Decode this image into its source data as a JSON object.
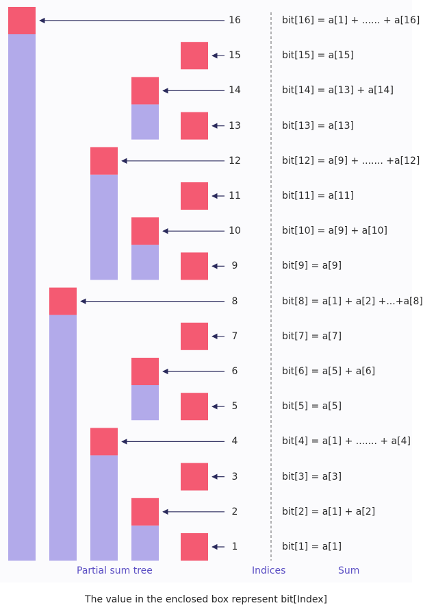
{
  "caption": "The value in the enclosed box represent bit[Index]",
  "footer": {
    "tree_label": "Partial sum tree",
    "indices_label": "Indices",
    "sum_label": "Sum"
  },
  "colors": {
    "enclosed_box": "#f45a72",
    "span_bar": "#b2aaea",
    "arrow": "#2a2a5c",
    "divider": "#666666",
    "footer_text": "#5b4fc4"
  },
  "nodes": [
    {
      "index": 1,
      "label": "1",
      "sum": "bit[1] = a[1]"
    },
    {
      "index": 2,
      "label": "2",
      "sum": "bit[2] = a[1] + a[2]"
    },
    {
      "index": 3,
      "label": "3",
      "sum": "bit[3] = a[3]"
    },
    {
      "index": 4,
      "label": "4",
      "sum": "bit[4] = a[1] + ....... + a[4]"
    },
    {
      "index": 5,
      "label": "5",
      "sum": "bit[5] = a[5]"
    },
    {
      "index": 6,
      "label": "6",
      "sum": "bit[6] = a[5] + a[6]"
    },
    {
      "index": 7,
      "label": "7",
      "sum": "bit[7] = a[7]"
    },
    {
      "index": 8,
      "label": "8",
      "sum": "bit[8] = a[1] + a[2] +...+a[8]"
    },
    {
      "index": 9,
      "label": "9",
      "sum": "bit[9] = a[9]"
    },
    {
      "index": 10,
      "label": "10",
      "sum": "bit[10] = a[9] + a[10]"
    },
    {
      "index": 11,
      "label": "11",
      "sum": "bit[11] = a[11]"
    },
    {
      "index": 12,
      "label": "12",
      "sum": "bit[12] = a[9] + ....... +a[12]"
    },
    {
      "index": 13,
      "label": "13",
      "sum": "bit[13] = a[13]"
    },
    {
      "index": 14,
      "label": "14",
      "sum": "bit[14] = a[13] + a[14]"
    },
    {
      "index": 15,
      "label": "15",
      "sum": "bit[15] = a[15]"
    },
    {
      "index": 16,
      "label": "16",
      "sum": "bit[16] = a[1] + ...... + a[16]"
    }
  ]
}
